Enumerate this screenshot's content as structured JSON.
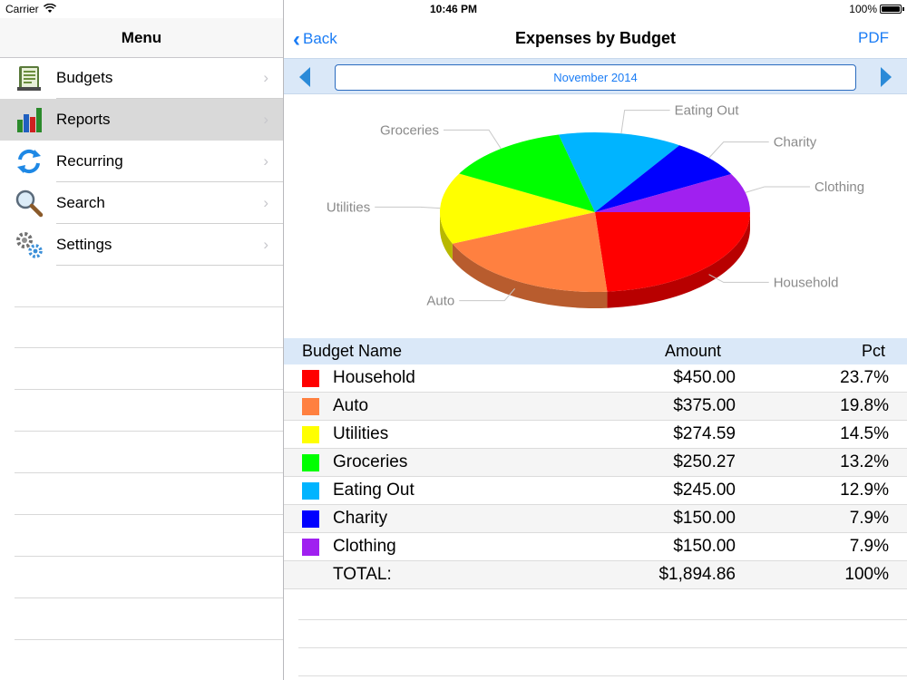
{
  "status": {
    "carrier": "Carrier",
    "time": "10:46 PM",
    "battery": "100%"
  },
  "menu": {
    "title": "Menu",
    "items": [
      {
        "label": "Budgets",
        "icon": "budget-book-icon",
        "selected": false
      },
      {
        "label": "Reports",
        "icon": "bar-chart-icon",
        "selected": true
      },
      {
        "label": "Recurring",
        "icon": "refresh-icon",
        "selected": false
      },
      {
        "label": "Search",
        "icon": "magnifier-icon",
        "selected": false
      },
      {
        "label": "Settings",
        "icon": "gears-icon",
        "selected": false
      }
    ]
  },
  "detail": {
    "back_label": "Back",
    "title": "Expenses by Budget",
    "pdf_label": "PDF",
    "month": "November 2014"
  },
  "table": {
    "headers": {
      "name": "Budget Name",
      "amount": "Amount",
      "pct": "Pct"
    },
    "rows": [
      {
        "name": "Household",
        "amount": "$450.00",
        "pct": "23.7%",
        "color": "#ff0000"
      },
      {
        "name": "Auto",
        "amount": "$375.00",
        "pct": "19.8%",
        "color": "#ff8040"
      },
      {
        "name": "Utilities",
        "amount": "$274.59",
        "pct": "14.5%",
        "color": "#ffff00"
      },
      {
        "name": "Groceries",
        "amount": "$250.27",
        "pct": "13.2%",
        "color": "#00ff00"
      },
      {
        "name": "Eating Out",
        "amount": "$245.00",
        "pct": "12.9%",
        "color": "#00b4ff"
      },
      {
        "name": "Charity",
        "amount": "$150.00",
        "pct": "7.9%",
        "color": "#0000ff"
      },
      {
        "name": "Clothing",
        "amount": "$150.00",
        "pct": "7.9%",
        "color": "#a020f0"
      }
    ],
    "total": {
      "label": "TOTAL:",
      "amount": "$1,894.86",
      "pct": "100%"
    }
  },
  "chart_data": {
    "type": "pie",
    "title": "",
    "categories": [
      "Household",
      "Auto",
      "Utilities",
      "Groceries",
      "Eating Out",
      "Charity",
      "Clothing"
    ],
    "values": [
      450.0,
      375.0,
      274.59,
      250.27,
      245.0,
      150.0,
      150.0
    ],
    "colors": [
      "#ff0000",
      "#ff8040",
      "#ffff00",
      "#00ff00",
      "#00b4ff",
      "#0000ff",
      "#a020f0"
    ]
  }
}
